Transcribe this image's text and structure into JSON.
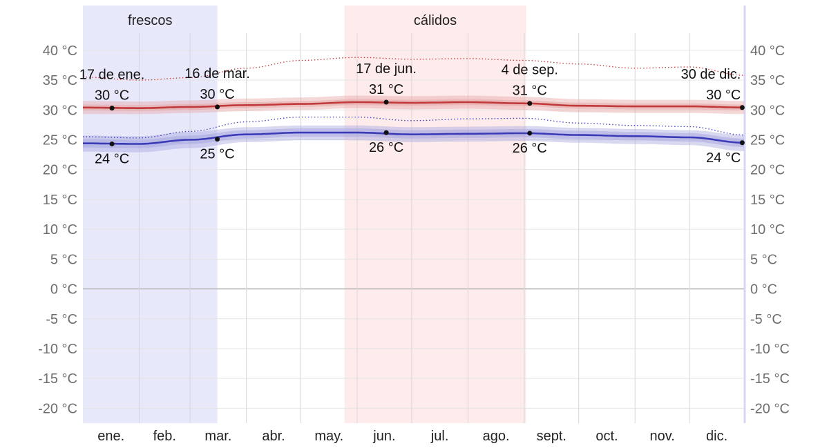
{
  "chart_data": {
    "type": "line",
    "title": "",
    "xlabel": "",
    "ylabel": "",
    "ylim": [
      -22.5,
      47.5
    ],
    "y_ticks": [
      40,
      35,
      30,
      25,
      20,
      15,
      10,
      5,
      0,
      -5,
      -10,
      -15,
      -20
    ],
    "y_tick_labels": [
      "40 °C",
      "35 °C",
      "30 °C",
      "25 °C",
      "20 °C",
      "15 °C",
      "10 °C",
      "5 °C",
      "0 °C",
      "-5 °C",
      "-10 °C",
      "-15 °C",
      "-20 °C"
    ],
    "x_range_days": [
      1,
      365
    ],
    "month_labels": [
      "ene.",
      "feb.",
      "mar.",
      "abr.",
      "may.",
      "jun.",
      "jul.",
      "ago.",
      "sept.",
      "oct.",
      "nov.",
      "dic."
    ],
    "month_start_days": [
      1,
      32,
      60,
      91,
      121,
      152,
      182,
      213,
      244,
      274,
      305,
      335
    ],
    "seasons": [
      {
        "label": "frescos",
        "start_day": 1,
        "end_day": 75,
        "color": "#e8e8fb"
      },
      {
        "label": "cálidos",
        "start_day": 145,
        "end_day": 245,
        "color": "#fdeceb"
      }
    ],
    "series": [
      {
        "id": "high",
        "color": "#c0393b",
        "band_color": "#e6a8a8",
        "x": [
          1,
          32,
          60,
          91,
          121,
          152,
          182,
          213,
          244,
          274,
          305,
          335,
          365
        ],
        "values": [
          30.4,
          30.3,
          30.5,
          30.8,
          31.0,
          31.3,
          31.2,
          31.3,
          31.1,
          30.7,
          30.6,
          30.6,
          30.4
        ],
        "band_p10": [
          29.3,
          29.3,
          29.5,
          29.8,
          30.0,
          30.3,
          30.1,
          30.2,
          30.0,
          29.6,
          29.5,
          29.5,
          29.3
        ],
        "band_p90": [
          31.5,
          31.4,
          31.6,
          31.9,
          32.1,
          32.4,
          32.3,
          32.4,
          32.2,
          31.8,
          31.7,
          31.7,
          31.5
        ],
        "band_p25": [
          29.9,
          29.8,
          30.0,
          30.3,
          30.5,
          30.8,
          30.7,
          30.8,
          30.6,
          30.2,
          30.1,
          30.1,
          29.9
        ],
        "band_p75": [
          30.9,
          30.8,
          31.0,
          31.3,
          31.5,
          31.8,
          31.7,
          31.8,
          31.6,
          31.2,
          31.1,
          31.1,
          30.9
        ],
        "dotted_values": [
          35.5,
          35.0,
          35.4,
          37.0,
          38.3,
          38.8,
          38.5,
          38.6,
          38.3,
          37.7,
          37.0,
          37.2,
          35.8
        ]
      },
      {
        "id": "low",
        "color": "#3b3bb8",
        "band_color": "#a9a9e0",
        "x": [
          1,
          32,
          60,
          91,
          121,
          152,
          182,
          213,
          244,
          274,
          305,
          335,
          365
        ],
        "values": [
          24.4,
          24.3,
          25.0,
          25.9,
          26.2,
          26.2,
          25.9,
          26.0,
          26.1,
          25.8,
          25.6,
          25.4,
          24.5
        ],
        "band_p10": [
          23.0,
          22.9,
          23.6,
          24.6,
          24.9,
          24.9,
          24.6,
          24.7,
          24.8,
          24.5,
          24.3,
          24.1,
          23.1
        ],
        "band_p90": [
          25.7,
          25.6,
          26.3,
          27.1,
          27.4,
          27.4,
          27.1,
          27.2,
          27.3,
          27.0,
          26.8,
          26.6,
          25.8
        ],
        "band_p25": [
          23.7,
          23.6,
          24.3,
          25.2,
          25.5,
          25.5,
          25.2,
          25.3,
          25.4,
          25.1,
          24.9,
          24.7,
          23.8
        ],
        "band_p75": [
          25.1,
          25.0,
          25.7,
          26.6,
          26.9,
          26.9,
          26.6,
          26.7,
          26.8,
          26.5,
          26.3,
          26.1,
          25.2
        ],
        "dotted_values": [
          25.5,
          25.3,
          26.4,
          28.0,
          28.8,
          28.8,
          28.2,
          28.5,
          28.6,
          27.8,
          27.4,
          27.2,
          25.8
        ]
      }
    ],
    "annotations": [
      {
        "day": 17,
        "value": 30.3,
        "date": "17 de ene.",
        "label": "30 °C",
        "series": "high"
      },
      {
        "day": 75,
        "value": 30.5,
        "date": "16 de mar.",
        "label": "30 °C",
        "series": "high"
      },
      {
        "day": 168,
        "value": 31.3,
        "date": "17 de jun.",
        "label": "31 °C",
        "series": "high"
      },
      {
        "day": 247,
        "value": 31.1,
        "date": "4 de sep.",
        "label": "31 °C",
        "series": "high"
      },
      {
        "day": 364,
        "value": 30.4,
        "date": "30 de dic.",
        "label": "30 °C",
        "series": "high"
      },
      {
        "day": 17,
        "value": 24.3,
        "date": "",
        "label": "24 °C",
        "series": "low"
      },
      {
        "day": 75,
        "value": 25.1,
        "date": "",
        "label": "25 °C",
        "series": "low"
      },
      {
        "day": 168,
        "value": 26.2,
        "date": "",
        "label": "26 °C",
        "series": "low"
      },
      {
        "day": 247,
        "value": 26.1,
        "date": "",
        "label": "26 °C",
        "series": "low"
      },
      {
        "day": 364,
        "value": 24.5,
        "date": "",
        "label": "24 °C",
        "series": "low"
      }
    ],
    "grid": true,
    "legend": "none"
  }
}
